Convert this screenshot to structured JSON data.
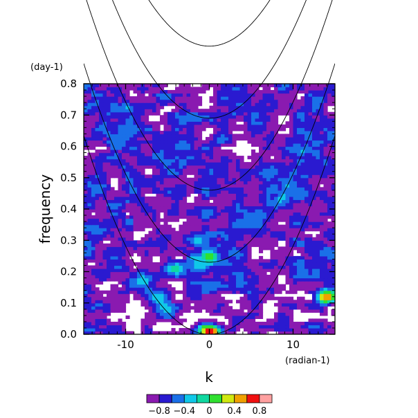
{
  "chart_data": {
    "type": "heatmap",
    "title": "",
    "xlabel": "k",
    "ylabel": "frequency",
    "x_unit": "(radian-1)",
    "y_unit": "(day-1)",
    "xlim": [
      -15,
      15
    ],
    "ylim": [
      0,
      0.8
    ],
    "x_ticks": [
      -10,
      0,
      10
    ],
    "x_minor_ticks": [
      -15,
      -14,
      -13,
      -12,
      -11,
      -9,
      -8,
      -7,
      -6,
      -5,
      -4,
      -3,
      -2,
      -1,
      1,
      2,
      3,
      4,
      5,
      6,
      7,
      8,
      9,
      11,
      12,
      13,
      14,
      15
    ],
    "y_ticks": [
      0.0,
      0.1,
      0.2,
      0.3,
      0.4,
      0.5,
      0.6,
      0.7,
      0.8
    ],
    "y_tick_labels": [
      "0.0",
      "0.1",
      "0.2",
      "0.3",
      "0.4",
      "0.5",
      "0.6",
      "0.7",
      "0.8"
    ],
    "colorbar": {
      "levels": [
        -1.0,
        -0.8,
        -0.6,
        -0.4,
        -0.2,
        0.0,
        0.2,
        0.4,
        0.6,
        0.8,
        1.0
      ],
      "colors": [
        "#8a1ab0",
        "#2a1ad0",
        "#1a70e8",
        "#10c8e8",
        "#10d8a0",
        "#30e030",
        "#d0e810",
        "#f0a000",
        "#f01010",
        "#ffa0a0"
      ],
      "tick_values": [
        -0.8,
        -0.4,
        0,
        0.4,
        0.8
      ],
      "tick_labels": [
        "−0.8",
        "−0.4",
        "0",
        "0.4",
        "0.8"
      ]
    },
    "dispersion_curves": [
      {
        "kind": "parabola",
        "f0": 0.0,
        "a": 0.00282
      },
      {
        "kind": "parabola",
        "f0": 0.23,
        "a": 0.00282
      },
      {
        "kind": "parabola",
        "f0": 0.46,
        "a": 0.00282
      },
      {
        "kind": "parabola",
        "f0": 0.69,
        "a": 0.00282
      },
      {
        "kind": "parabola",
        "f0": 0.92,
        "a": 0.00282
      }
    ],
    "features": [
      {
        "k": -8.0,
        "f": 0.17,
        "value": -0.3
      },
      {
        "k": -6.0,
        "f": 0.12,
        "value": -0.3
      },
      {
        "k": -4.0,
        "f": 0.21,
        "value": 0.0
      },
      {
        "k": -5.0,
        "f": 0.08,
        "value": -0.3
      },
      {
        "k": 0.0,
        "f": 0.25,
        "value": 0.1
      },
      {
        "k": -1.0,
        "f": 0.22,
        "value": -0.3
      },
      {
        "k": -1.5,
        "f": 0.3,
        "value": -0.3
      },
      {
        "k": 0.0,
        "f": 0.01,
        "value": 0.85
      },
      {
        "k": 14.0,
        "f": 0.12,
        "value": 0.6
      },
      {
        "k": -10.0,
        "f": 0.65,
        "value": -0.4
      },
      {
        "k": -14.0,
        "f": 0.34,
        "value": -0.4
      },
      {
        "k": 7.0,
        "f": 0.52,
        "value": -0.4
      },
      {
        "k": 4.0,
        "f": 0.35,
        "value": -0.4
      },
      {
        "k": 6.0,
        "f": 0.38,
        "value": -0.4
      },
      {
        "k": 11.0,
        "f": 0.45,
        "value": -0.4
      },
      {
        "k": -3.0,
        "f": 0.6,
        "value": -0.4
      }
    ]
  }
}
